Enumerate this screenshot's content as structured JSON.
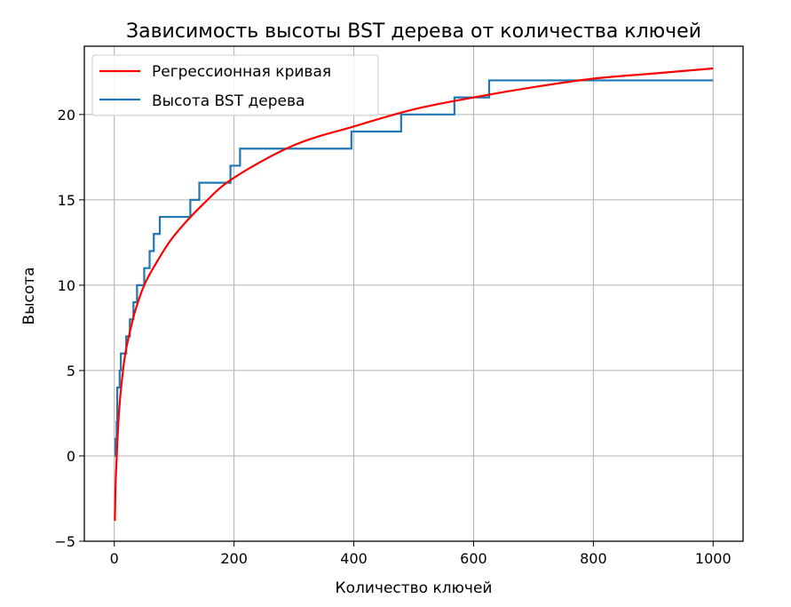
{
  "chart_data": {
    "type": "line",
    "title": "Зависимость высоты BST дерева от количества ключей",
    "xlabel": "Количество ключей",
    "ylabel": "Высота",
    "xlim": [
      -50,
      1050
    ],
    "ylim": [
      -5,
      24
    ],
    "xticks": [
      0,
      200,
      400,
      600,
      800,
      1000
    ],
    "yticks": [
      -5,
      0,
      5,
      10,
      15,
      20
    ],
    "ytick_labels": [
      "−5",
      "0",
      "5",
      "10",
      "15",
      "20"
    ],
    "grid": true,
    "legend_position": "top-left",
    "series": [
      {
        "name": "Регрессионная кривая",
        "color": "#ff0000",
        "style": "smooth",
        "x": [
          1,
          2,
          3,
          5,
          8,
          12,
          18,
          25,
          35,
          50,
          70,
          100,
          150,
          200,
          300,
          400,
          500,
          600,
          700,
          800,
          900,
          1000
        ],
        "y": [
          -3.8,
          -2.0,
          -0.9,
          0.7,
          2.6,
          4.2,
          5.9,
          7.1,
          8.5,
          10.0,
          11.3,
          12.9,
          14.8,
          16.3,
          18.2,
          19.3,
          20.3,
          21.0,
          21.6,
          22.1,
          22.4,
          22.7
        ]
      },
      {
        "name": "Высота BST дерева",
        "color": "#1f77b4",
        "style": "step",
        "x": [
          1,
          2,
          4,
          5,
          7,
          9,
          11,
          16,
          20,
          26,
          32,
          38,
          50,
          59,
          66,
          71,
          76,
          126,
          127,
          142,
          194,
          210,
          395,
          396,
          477,
          479,
          566,
          568,
          623,
          626,
          1000
        ],
        "y": [
          0,
          1,
          2,
          4,
          4,
          5,
          6,
          6,
          7,
          8,
          9,
          10,
          11,
          12,
          13,
          13,
          14,
          14,
          15,
          16,
          17,
          18,
          18,
          19,
          19,
          20,
          20,
          21,
          21,
          22,
          22
        ]
      }
    ]
  }
}
